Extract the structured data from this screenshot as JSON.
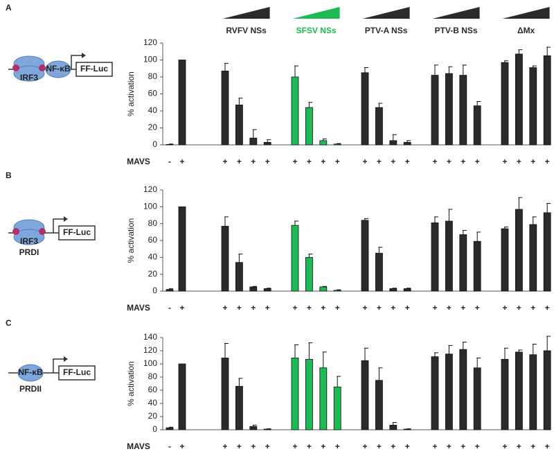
{
  "header_groups": [
    {
      "name": "RVFV NSs",
      "color": "#2b2b2b"
    },
    {
      "name": "SFSV NSs",
      "color": "#1db954"
    },
    {
      "name": "PTV-A NSs",
      "color": "#2b2b2b"
    },
    {
      "name": "PTV-B NSs",
      "color": "#2b2b2b"
    },
    {
      "name": "ΔMx",
      "color": "#2b2b2b"
    }
  ],
  "diagrams": [
    {
      "labels": [
        "IRF3",
        "NF-κB",
        "FF-Luc"
      ]
    },
    {
      "labels": [
        "IRF3",
        "FF-Luc",
        "PRDI"
      ]
    },
    {
      "labels": [
        "NF-κB",
        "FF-Luc",
        "PRDII"
      ]
    }
  ],
  "chart_data": [
    {
      "type": "bar",
      "panel": "A",
      "ylabel": "% activation",
      "row_label": "MAVS",
      "ylim": [
        0,
        120
      ],
      "yticks": [
        0,
        20,
        40,
        60,
        80,
        100,
        120
      ],
      "categories": [
        "-",
        "+",
        "+",
        "+",
        "+",
        "+",
        "+",
        "+",
        "+",
        "+",
        "+",
        "+",
        "+",
        "+",
        "+",
        "+",
        "+",
        "+",
        "+",
        "+",
        "+",
        "+"
      ],
      "values": [
        0.5,
        100,
        87,
        47,
        8,
        3,
        80,
        44,
        5,
        1,
        85,
        44,
        5,
        3,
        82,
        84,
        82,
        46,
        97,
        107,
        91,
        105
      ],
      "errors": [
        0.5,
        0,
        9,
        8,
        10,
        3,
        13,
        6,
        2,
        0.5,
        6,
        5,
        7,
        2,
        12,
        8,
        12,
        5,
        2,
        5,
        2,
        10
      ]
    },
    {
      "type": "bar",
      "panel": "B",
      "ylabel": "% activation",
      "row_label": "MAVS",
      "ylim": [
        0,
        120
      ],
      "yticks": [
        0,
        20,
        40,
        60,
        80,
        100,
        120
      ],
      "categories": [
        "-",
        "+",
        "+",
        "+",
        "+",
        "+",
        "+",
        "+",
        "+",
        "+",
        "+",
        "+",
        "+",
        "+",
        "+",
        "+",
        "+",
        "+",
        "+",
        "+",
        "+",
        "+"
      ],
      "values": [
        2,
        100,
        77,
        34,
        5,
        3,
        78,
        40,
        5,
        1,
        84,
        45,
        3,
        3,
        81,
        83,
        67,
        59,
        74,
        97,
        79,
        93
      ],
      "errors": [
        1,
        0,
        11,
        10,
        0.5,
        0.5,
        5,
        4,
        0.5,
        0.5,
        2,
        7,
        0.5,
        0.5,
        7,
        14,
        5,
        11,
        2,
        14,
        9,
        11
      ]
    },
    {
      "type": "bar",
      "panel": "C",
      "ylabel": "% activation",
      "row_label": "MAVS",
      "ylim": [
        0,
        140
      ],
      "yticks": [
        0,
        20,
        40,
        60,
        80,
        100,
        120,
        140
      ],
      "categories": [
        "-",
        "+",
        "+",
        "+",
        "+",
        "+",
        "+",
        "+",
        "+",
        "+",
        "+",
        "+",
        "+",
        "+",
        "+",
        "+",
        "+",
        "+",
        "+",
        "+",
        "+",
        "+"
      ],
      "values": [
        3,
        100,
        109,
        66,
        5,
        1,
        109,
        107,
        94,
        65,
        105,
        75,
        7,
        1,
        111,
        115,
        122,
        94,
        107,
        118,
        114,
        120
      ],
      "errors": [
        1,
        0,
        22,
        12,
        2,
        0.5,
        20,
        25,
        24,
        16,
        19,
        19,
        4,
        0.5,
        6,
        13,
        11,
        15,
        17,
        3,
        16,
        22
      ]
    }
  ]
}
